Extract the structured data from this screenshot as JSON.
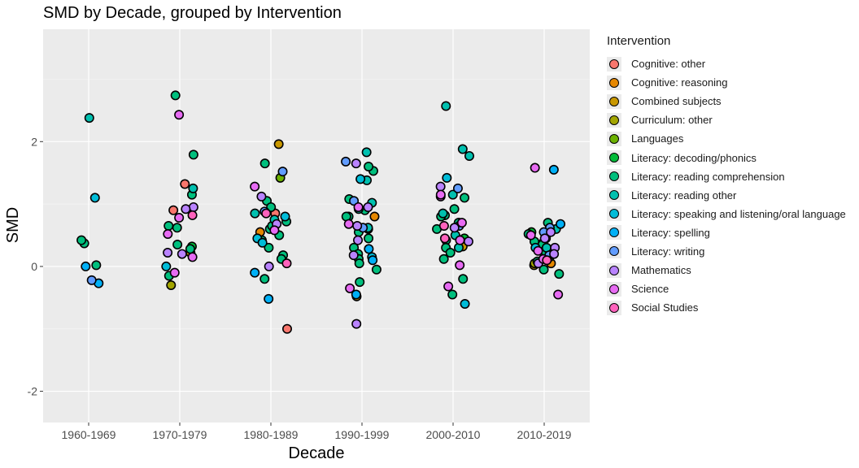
{
  "chart_data": {
    "type": "scatter",
    "title": "SMD by Decade, grouped by Intervention",
    "xlabel": "Decade",
    "ylabel": "SMD",
    "categories": [
      "1960-1969",
      "1970-1979",
      "1980-1989",
      "1990-1999",
      "2000-2010",
      "2010-2019"
    ],
    "ylim": [
      -2.5,
      3.8
    ],
    "yticks": [
      -2,
      0,
      2
    ],
    "grid": true,
    "legend_title": "Intervention",
    "legend_position": "right",
    "series": [
      {
        "name": "Cognitive: other",
        "color": "#F8766D",
        "points": [
          [
            1,
            1.32
          ],
          [
            1,
            0.9
          ],
          [
            2,
            0.85
          ],
          [
            2,
            -1.0
          ],
          [
            4,
            0.7
          ],
          [
            5,
            0.22
          ]
        ]
      },
      {
        "name": "Cognitive: reasoning",
        "color": "#E58700",
        "points": [
          [
            2,
            0.55
          ],
          [
            3,
            0.8
          ],
          [
            5,
            0.05
          ]
        ]
      },
      {
        "name": "Combined subjects",
        "color": "#C99800",
        "points": [
          [
            1,
            0.22
          ],
          [
            2,
            1.96
          ],
          [
            3,
            -0.48
          ],
          [
            4,
            0.32
          ],
          [
            5,
            0.02
          ],
          [
            5,
            0.25
          ]
        ]
      },
      {
        "name": "Curriculum: other",
        "color": "#A3A500",
        "points": [
          [
            1,
            -0.3
          ],
          [
            5,
            0.05
          ]
        ]
      },
      {
        "name": "Languages",
        "color": "#6BB100",
        "points": [
          [
            2,
            1.42
          ]
        ]
      },
      {
        "name": "Literacy: decoding/phonics",
        "color": "#00BA38",
        "points": [
          [
            1,
            0.32
          ],
          [
            4,
            0.45
          ],
          [
            5,
            0.55
          ],
          [
            5,
            0.38
          ]
        ]
      },
      {
        "name": "Literacy: reading comprehension",
        "color": "#00BF7D",
        "points": [
          [
            0,
            0.02
          ],
          [
            0,
            0.37
          ],
          [
            0,
            0.42
          ],
          [
            1,
            2.74
          ],
          [
            1,
            1.79
          ],
          [
            1,
            1.15
          ],
          [
            1,
            0.62
          ],
          [
            1,
            0.35
          ],
          [
            1,
            0.28
          ],
          [
            1,
            -0.15
          ],
          [
            1,
            0.65
          ],
          [
            2,
            1.65
          ],
          [
            2,
            1.05
          ],
          [
            2,
            0.95
          ],
          [
            2,
            0.72
          ],
          [
            2,
            0.6
          ],
          [
            2,
            0.5
          ],
          [
            2,
            0.42
          ],
          [
            2,
            0.3
          ],
          [
            2,
            0.18
          ],
          [
            2,
            0.12
          ],
          [
            2,
            -0.2
          ],
          [
            2,
            0.65
          ],
          [
            3,
            1.53
          ],
          [
            3,
            1.6
          ],
          [
            3,
            1.08
          ],
          [
            3,
            0.9
          ],
          [
            3,
            0.8
          ],
          [
            3,
            0.6
          ],
          [
            3,
            0.55
          ],
          [
            3,
            0.45
          ],
          [
            3,
            0.3
          ],
          [
            3,
            0.2
          ],
          [
            3,
            0.12
          ],
          [
            3,
            0.05
          ],
          [
            3,
            -0.05
          ],
          [
            3,
            -0.25
          ],
          [
            3,
            0.8
          ],
          [
            4,
            0.82
          ],
          [
            4,
            0.8
          ],
          [
            4,
            0.7
          ],
          [
            4,
            0.6
          ],
          [
            4,
            0.42
          ],
          [
            4,
            0.3
          ],
          [
            4,
            0.22
          ],
          [
            4,
            0.12
          ],
          [
            4,
            -0.2
          ],
          [
            4,
            -0.45
          ],
          [
            4,
            0.92
          ],
          [
            4,
            1.1
          ],
          [
            5,
            0.7
          ],
          [
            5,
            0.6
          ],
          [
            5,
            0.52
          ],
          [
            5,
            0.45
          ],
          [
            5,
            0.35
          ],
          [
            5,
            0.25
          ],
          [
            5,
            0.15
          ],
          [
            5,
            0.08
          ],
          [
            5,
            -0.05
          ],
          [
            5,
            -0.12
          ],
          [
            5,
            0.4
          ]
        ]
      },
      {
        "name": "Literacy: reading other",
        "color": "#00C0AF",
        "points": [
          [
            0,
            2.38
          ],
          [
            1,
            1.25
          ],
          [
            2,
            0.75
          ],
          [
            2,
            0.85
          ],
          [
            3,
            1.83
          ],
          [
            3,
            1.38
          ],
          [
            3,
            0.92
          ],
          [
            3,
            1.02
          ],
          [
            3,
            0.62
          ],
          [
            4,
            2.57
          ],
          [
            4,
            1.88
          ],
          [
            4,
            1.77
          ],
          [
            4,
            1.15
          ],
          [
            4,
            0.85
          ],
          [
            4,
            0.5
          ],
          [
            4,
            0.3
          ],
          [
            5,
            0.6
          ],
          [
            5,
            0.3
          ]
        ]
      },
      {
        "name": "Literacy: speaking and listening/oral language",
        "color": "#00BCD8",
        "points": [
          [
            0,
            1.1
          ],
          [
            1,
            0.0
          ],
          [
            2,
            0.8
          ],
          [
            2,
            0.45
          ],
          [
            2,
            0.38
          ],
          [
            3,
            1.4
          ],
          [
            3,
            0.15
          ],
          [
            4,
            1.42
          ],
          [
            4,
            -0.6
          ],
          [
            5,
            0.3
          ]
        ]
      },
      {
        "name": "Literacy: spelling",
        "color": "#00B0F6",
        "points": [
          [
            0,
            -0.27
          ],
          [
            0,
            0.0
          ],
          [
            2,
            -0.52
          ],
          [
            2,
            -0.1
          ],
          [
            3,
            -0.45
          ],
          [
            3,
            0.28
          ],
          [
            3,
            0.1
          ],
          [
            5,
            1.55
          ],
          [
            5,
            0.68
          ]
        ]
      },
      {
        "name": "Literacy: writing",
        "color": "#619CFF",
        "points": [
          [
            0,
            -0.22
          ],
          [
            2,
            1.52
          ],
          [
            2,
            0.88
          ],
          [
            3,
            1.68
          ],
          [
            3,
            1.05
          ],
          [
            3,
            0.62
          ],
          [
            4,
            1.25
          ],
          [
            4,
            0.65
          ],
          [
            5,
            0.62
          ],
          [
            5,
            0.55
          ],
          [
            5,
            0.18
          ]
        ]
      },
      {
        "name": "Mathematics",
        "color": "#B983FF",
        "points": [
          [
            1,
            0.95
          ],
          [
            1,
            0.92
          ],
          [
            1,
            0.22
          ],
          [
            1,
            0.2
          ],
          [
            2,
            1.12
          ],
          [
            2,
            0.68
          ],
          [
            2,
            0.0
          ],
          [
            3,
            1.65
          ],
          [
            3,
            0.95
          ],
          [
            3,
            0.65
          ],
          [
            3,
            0.42
          ],
          [
            3,
            0.18
          ],
          [
            3,
            -0.92
          ],
          [
            4,
            1.28
          ],
          [
            4,
            0.62
          ],
          [
            4,
            0.4
          ],
          [
            5,
            0.55
          ],
          [
            5,
            0.45
          ],
          [
            5,
            0.3
          ],
          [
            5,
            0.2
          ],
          [
            5,
            0.05
          ]
        ]
      },
      {
        "name": "Science",
        "color": "#E76BF3",
        "points": [
          [
            1,
            2.43
          ],
          [
            1,
            0.78
          ],
          [
            1,
            0.52
          ],
          [
            1,
            0.15
          ],
          [
            1,
            -0.1
          ],
          [
            2,
            1.28
          ],
          [
            2,
            0.58
          ],
          [
            3,
            0.95
          ],
          [
            3,
            0.68
          ],
          [
            3,
            -0.35
          ],
          [
            4,
            1.12
          ],
          [
            4,
            1.15
          ],
          [
            4,
            0.7
          ],
          [
            4,
            0.42
          ],
          [
            4,
            0.02
          ],
          [
            4,
            -0.32
          ],
          [
            5,
            1.58
          ],
          [
            5,
            0.12
          ],
          [
            5,
            -0.45
          ],
          [
            5,
            0.25
          ],
          [
            5,
            0.5
          ]
        ]
      },
      {
        "name": "Social Studies",
        "color": "#FF62BC",
        "points": [
          [
            1,
            0.82
          ],
          [
            2,
            0.85
          ],
          [
            2,
            0.05
          ],
          [
            4,
            0.65
          ],
          [
            4,
            0.45
          ],
          [
            5,
            0.1
          ]
        ]
      }
    ]
  }
}
